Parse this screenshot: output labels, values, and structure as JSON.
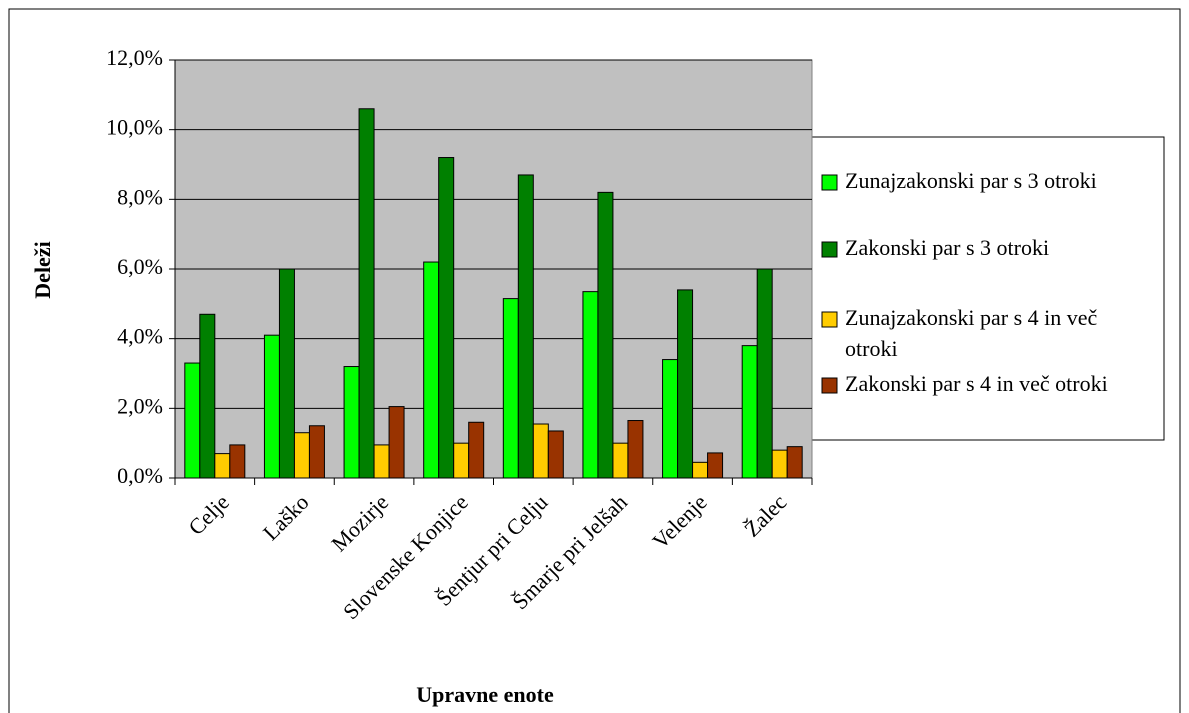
{
  "chart_data": {
    "type": "bar",
    "x_label": "Upravne enote",
    "y_label": "Deleži",
    "categories": [
      "Celje",
      "Laško",
      "Mozirje",
      "Slovenske Konjice",
      "Šentjur pri Celju",
      "Šmarje pri Jelšah",
      "Velenje",
      "Žalec"
    ],
    "series": [
      {
        "name": "Zunajzakonski par s 3 otroki",
        "color": "#00ff00",
        "values": [
          3.3,
          4.1,
          3.2,
          6.2,
          5.15,
          5.35,
          3.4,
          3.8
        ]
      },
      {
        "name": "Zakonski par s 3 otroki",
        "color": "#008000",
        "values": [
          4.7,
          6.0,
          10.6,
          9.2,
          8.7,
          8.2,
          5.4,
          6.0
        ]
      },
      {
        "name": "Zunajzakonski par s 4 in več otroki",
        "color": "#ffcc00",
        "values": [
          0.7,
          1.3,
          0.95,
          1.0,
          1.55,
          1.0,
          0.45,
          0.8
        ]
      },
      {
        "name": "Zakonski par s 4 in več otroki",
        "color": "#993300",
        "values": [
          0.95,
          1.5,
          2.05,
          1.6,
          1.35,
          1.65,
          0.72,
          0.9
        ]
      }
    ],
    "ylim": [
      0,
      12
    ],
    "yticks": [
      {
        "value": 0,
        "label": "0,0%"
      },
      {
        "value": 2,
        "label": "2,0%"
      },
      {
        "value": 4,
        "label": "4,0%"
      },
      {
        "value": 6,
        "label": "6,0%"
      },
      {
        "value": 8,
        "label": "8,0%"
      },
      {
        "value": 10,
        "label": "10,0%"
      },
      {
        "value": 12,
        "label": "12,0%"
      }
    ],
    "grid": true,
    "legend": "right",
    "plot_background": "#c0c0c0"
  }
}
